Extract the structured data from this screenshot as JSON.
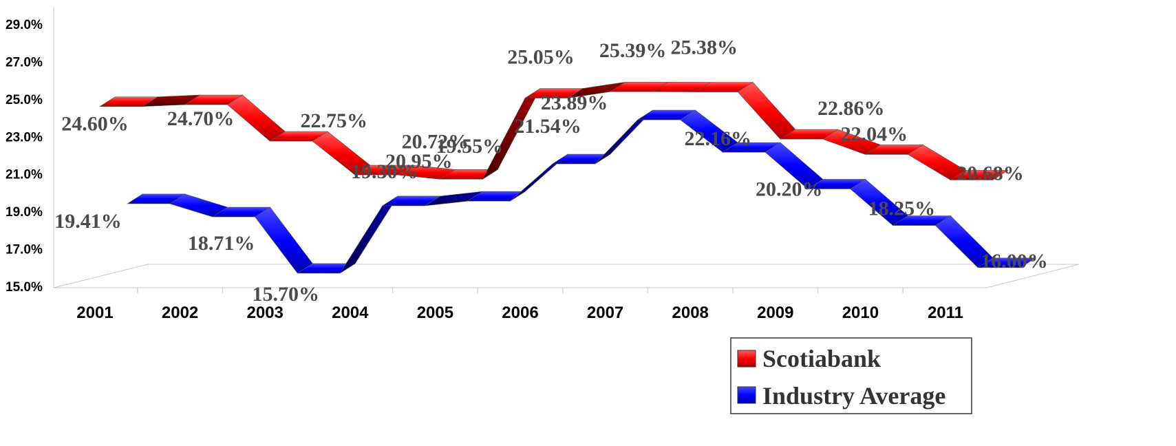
{
  "chart_data": {
    "type": "line",
    "categories": [
      "2001",
      "2002",
      "2003",
      "2004",
      "2005",
      "2006",
      "2007",
      "2008",
      "2009",
      "2010",
      "2011"
    ],
    "series": [
      {
        "name": "Scotiabank",
        "color": "#ff0000",
        "values": [
          24.6,
          24.7,
          22.75,
          20.95,
          20.72,
          25.05,
          25.39,
          25.38,
          22.86,
          22.04,
          20.68
        ],
        "labels": [
          "24.60%",
          "24.70%",
          "22.75%",
          "20.95%",
          "20.72%",
          "25.05%",
          "25.39%",
          "25.38%",
          "22.86%",
          "22.04%",
          "20.68%"
        ]
      },
      {
        "name": "Industry Average",
        "color": "#0000ff",
        "values": [
          19.41,
          18.71,
          15.7,
          19.3,
          19.55,
          21.54,
          23.89,
          22.16,
          20.2,
          18.25,
          16.0
        ],
        "labels": [
          "19.41%",
          "18.71%",
          "15.70%",
          "19.30%",
          "19.55%",
          "21.54%",
          "23.89%",
          "22.16%",
          "20.20%",
          "18.25%",
          "16.00%"
        ]
      }
    ],
    "yticks": [
      "15.0%",
      "17.0%",
      "19.0%",
      "21.0%",
      "23.0%",
      "25.0%",
      "27.0%",
      "29.0%"
    ],
    "ylim": [
      15,
      29
    ],
    "legend_position": "bottom-right",
    "style": "3d-ribbon"
  }
}
